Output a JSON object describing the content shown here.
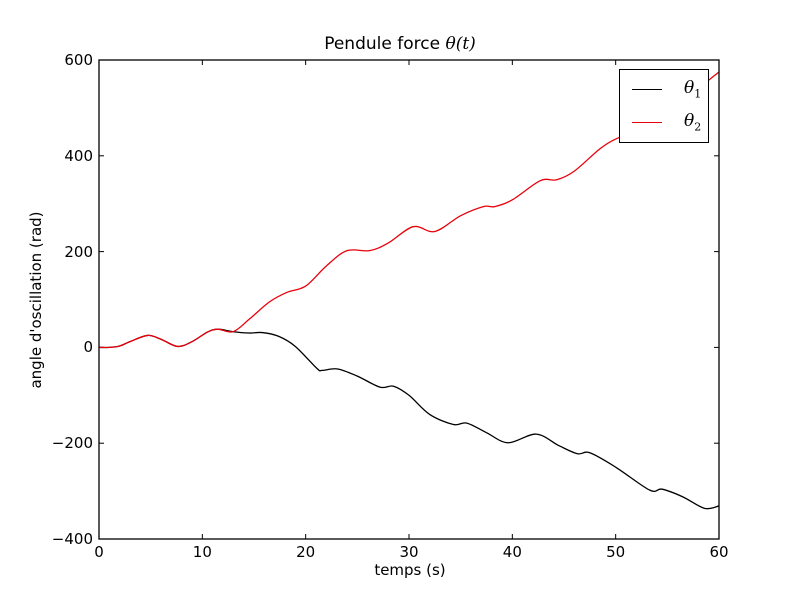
{
  "chart_data": {
    "type": "line",
    "title": "Pendule force θ(t)",
    "title_text": "Pendule force ",
    "title_math": "θ(t)",
    "xlabel": "temps (s)",
    "ylabel": "angle d'oscillation (rad)",
    "xlim": [
      0,
      60
    ],
    "ylim": [
      -400,
      600
    ],
    "xticks": [
      0,
      10,
      20,
      30,
      40,
      50,
      60
    ],
    "yticks": [
      600,
      400,
      200,
      0,
      -200,
      -400
    ],
    "grid": false,
    "legend_position": "upper right",
    "series": [
      {
        "name": "θ1",
        "label_base": "θ",
        "label_sub": "1",
        "color": "#000000",
        "x": [
          0,
          1,
          2,
          3,
          4.7,
          6,
          7.6,
          9,
          10.5,
          11.5,
          12.9,
          14.5,
          15.8,
          17.4,
          19,
          21.1,
          21.6,
          23.1,
          25,
          27.2,
          28.5,
          30,
          32,
          34.3,
          35.6,
          37.5,
          39.6,
          42.3,
          44.5,
          46.3,
          47.5,
          50,
          53.3,
          54.5,
          56.5,
          58.6,
          60
        ],
        "y": [
          0,
          0,
          3,
          12,
          25,
          17,
          2,
          12,
          32,
          38,
          33,
          30,
          31,
          23,
          2,
          -44,
          -48,
          -45,
          -60,
          -83,
          -81,
          -100,
          -140,
          -161,
          -158,
          -178,
          -199,
          -181,
          -205,
          -222,
          -220,
          -250,
          -298,
          -296,
          -312,
          -336,
          -331
        ]
      },
      {
        "name": "θ2",
        "label_base": "θ",
        "label_sub": "2",
        "color": "#e8000b",
        "x": [
          0,
          1,
          2,
          3,
          4.7,
          6,
          7.6,
          9,
          10.5,
          11.5,
          13,
          14.6,
          16.5,
          18.2,
          20,
          22,
          24,
          26.2,
          28,
          30.4,
          32.5,
          35,
          37.2,
          38.3,
          40,
          42.7,
          44.3,
          46,
          48.5,
          50.1,
          52,
          54,
          56,
          58,
          60
        ],
        "y": [
          0,
          0,
          3,
          12,
          25,
          17,
          2,
          12,
          32,
          38,
          33,
          60,
          95,
          115,
          128,
          170,
          202,
          202,
          218,
          252,
          242,
          275,
          294,
          294,
          308,
          348,
          350,
          368,
          415,
          436,
          448,
          470,
          500,
          540,
          575
        ]
      }
    ]
  }
}
